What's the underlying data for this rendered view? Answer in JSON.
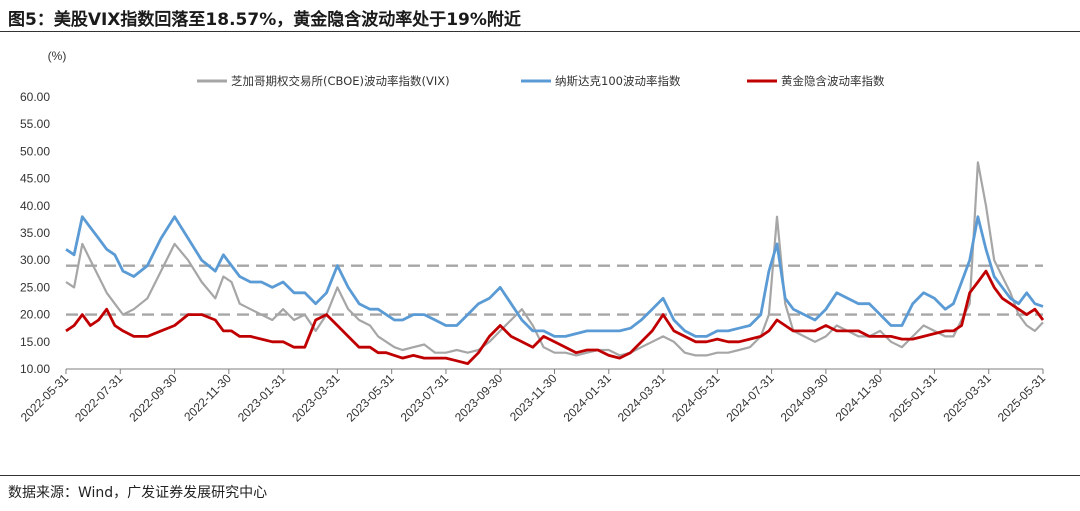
{
  "figure": {
    "title": "图5：美股VIX指数回落至18.57%，黄金隐含波动率处于19%附近",
    "source": "数据来源：Wind，广发证券发展研究中心"
  },
  "chart_data": {
    "type": "line",
    "unit_label": "(%)",
    "ylim": [
      10,
      60
    ],
    "yticks": [
      "10.00",
      "15.00",
      "20.00",
      "25.00",
      "30.00",
      "35.00",
      "40.00",
      "45.00",
      "50.00",
      "55.00",
      "60.00"
    ],
    "xlim": [
      0,
      36
    ],
    "xticks": [
      "2022-05-31",
      "2022-07-31",
      "2022-09-30",
      "2022-11-30",
      "2023-01-31",
      "2023-03-31",
      "2023-05-31",
      "2023-07-31",
      "2023-09-30",
      "2023-11-30",
      "2024-01-31",
      "2024-03-31",
      "2024-05-31",
      "2024-07-31",
      "2024-09-30",
      "2024-11-30",
      "2025-01-31",
      "2025-03-31",
      "2025-05-31"
    ],
    "reference_lines": [
      29,
      20
    ],
    "colors": {
      "vix": "#a6a6a6",
      "nasdaq": "#5b9bd5",
      "gold": "#c00000",
      "ref": "#a6a6a6"
    },
    "series": [
      {
        "name": "芝加哥期权交易所(CBOE)波动率指数(VIX)",
        "key": "vix",
        "x": [
          0,
          0.3,
          0.6,
          0.9,
          1.2,
          1.5,
          1.8,
          2.1,
          2.5,
          3,
          3.5,
          4,
          4.5,
          5,
          5.5,
          5.8,
          6.1,
          6.4,
          6.8,
          7.2,
          7.6,
          8,
          8.4,
          8.8,
          9.2,
          9.6,
          10,
          10.4,
          10.8,
          11.2,
          11.5,
          11.8,
          12.1,
          12.4,
          12.8,
          13.2,
          13.6,
          14,
          14.4,
          14.8,
          15.2,
          15.6,
          16,
          16.4,
          16.8,
          17.2,
          17.6,
          18,
          18.4,
          18.8,
          19.2,
          19.6,
          20,
          20.4,
          20.8,
          21.2,
          21.6,
          22,
          22.4,
          22.8,
          23.2,
          23.6,
          24,
          24.4,
          24.8,
          25.2,
          25.6,
          25.9,
          26.2,
          26.5,
          26.8,
          27.2,
          27.6,
          28,
          28.4,
          28.8,
          29.2,
          29.6,
          30,
          30.4,
          30.8,
          31.2,
          31.6,
          32,
          32.4,
          32.7,
          33,
          33.3,
          33.6,
          33.9,
          34.2,
          34.5,
          34.8,
          35.1,
          35.4,
          35.7,
          36
        ],
        "values": [
          26,
          25,
          33,
          30,
          27,
          24,
          22,
          20,
          21,
          23,
          28,
          33,
          30,
          26,
          23,
          27,
          26,
          22,
          21,
          20,
          19,
          21,
          19,
          20,
          17,
          20,
          25,
          21,
          19,
          18,
          16,
          15,
          14,
          13.5,
          14,
          14.5,
          13,
          13,
          13.5,
          13,
          13.5,
          15,
          17,
          19,
          21,
          18,
          14,
          13,
          13,
          12.5,
          13,
          13.5,
          13.5,
          12.5,
          13,
          14,
          15,
          16,
          15,
          13,
          12.5,
          12.5,
          13,
          13,
          13.5,
          14,
          16,
          20,
          38,
          22,
          17,
          16,
          15,
          16,
          18,
          17,
          16,
          16,
          17,
          15,
          14,
          16,
          18,
          17,
          16,
          16,
          19,
          22,
          48,
          40,
          30,
          27,
          24,
          20,
          18,
          17,
          18.57
        ]
      },
      {
        "name": "纳斯达克100波动率指数",
        "key": "nasdaq",
        "x": [
          0,
          0.3,
          0.6,
          0.9,
          1.2,
          1.5,
          1.8,
          2.1,
          2.5,
          3,
          3.5,
          4,
          4.5,
          5,
          5.5,
          5.8,
          6.1,
          6.4,
          6.8,
          7.2,
          7.6,
          8,
          8.4,
          8.8,
          9.2,
          9.6,
          10,
          10.4,
          10.8,
          11.2,
          11.5,
          11.8,
          12.1,
          12.4,
          12.8,
          13.2,
          13.6,
          14,
          14.4,
          14.8,
          15.2,
          15.6,
          16,
          16.4,
          16.8,
          17.2,
          17.6,
          18,
          18.4,
          18.8,
          19.2,
          19.6,
          20,
          20.4,
          20.8,
          21.2,
          21.6,
          22,
          22.4,
          22.8,
          23.2,
          23.6,
          24,
          24.4,
          24.8,
          25.2,
          25.6,
          25.9,
          26.2,
          26.5,
          26.8,
          27.2,
          27.6,
          28,
          28.4,
          28.8,
          29.2,
          29.6,
          30,
          30.4,
          30.8,
          31.2,
          31.6,
          32,
          32.4,
          32.7,
          33,
          33.3,
          33.6,
          33.9,
          34.2,
          34.5,
          34.8,
          35.1,
          35.4,
          35.7,
          36
        ],
        "values": [
          32,
          31,
          38,
          36,
          34,
          32,
          31,
          28,
          27,
          29,
          34,
          38,
          34,
          30,
          28,
          31,
          29,
          27,
          26,
          26,
          25,
          26,
          24,
          24,
          22,
          24,
          29,
          25,
          22,
          21,
          21,
          20,
          19,
          19,
          20,
          20,
          19,
          18,
          18,
          20,
          22,
          23,
          25,
          22,
          19,
          17,
          17,
          16,
          16,
          16.5,
          17,
          17,
          17,
          17,
          17.5,
          19,
          21,
          23,
          19,
          17,
          16,
          16,
          17,
          17,
          17.5,
          18,
          20,
          28,
          33,
          23,
          21,
          20,
          19,
          21,
          24,
          23,
          22,
          22,
          20,
          18,
          18,
          22,
          24,
          23,
          21,
          22,
          26,
          30,
          38,
          32,
          27,
          25,
          23,
          22,
          24,
          22,
          21.5
        ]
      },
      {
        "name": "黄金隐含波动率指数",
        "key": "gold",
        "x": [
          0,
          0.3,
          0.6,
          0.9,
          1.2,
          1.5,
          1.8,
          2.1,
          2.5,
          3,
          3.5,
          4,
          4.5,
          5,
          5.5,
          5.8,
          6.1,
          6.4,
          6.8,
          7.2,
          7.6,
          8,
          8.4,
          8.8,
          9.2,
          9.6,
          10,
          10.4,
          10.8,
          11.2,
          11.5,
          11.8,
          12.1,
          12.4,
          12.8,
          13.2,
          13.6,
          14,
          14.4,
          14.8,
          15.2,
          15.6,
          16,
          16.4,
          16.8,
          17.2,
          17.6,
          18,
          18.4,
          18.8,
          19.2,
          19.6,
          20,
          20.4,
          20.8,
          21.2,
          21.6,
          22,
          22.4,
          22.8,
          23.2,
          23.6,
          24,
          24.4,
          24.8,
          25.2,
          25.6,
          25.9,
          26.2,
          26.5,
          26.8,
          27.2,
          27.6,
          28,
          28.4,
          28.8,
          29.2,
          29.6,
          30,
          30.4,
          30.8,
          31.2,
          31.6,
          32,
          32.4,
          32.7,
          33,
          33.3,
          33.6,
          33.9,
          34.2,
          34.5,
          34.8,
          35.1,
          35.4,
          35.7,
          36
        ],
        "values": [
          17,
          18,
          20,
          18,
          19,
          21,
          18,
          17,
          16,
          16,
          17,
          18,
          20,
          20,
          19,
          17,
          17,
          16,
          16,
          15.5,
          15,
          15,
          14,
          14,
          19,
          20,
          18,
          16,
          14,
          14,
          13,
          13,
          12.5,
          12,
          12.5,
          12,
          12,
          12,
          11.5,
          11,
          13,
          16,
          18,
          16,
          15,
          14,
          16,
          15,
          14,
          13,
          13.5,
          13.5,
          12.5,
          12,
          13,
          15,
          17,
          20,
          17,
          16,
          15,
          15,
          15.5,
          15,
          15,
          15.5,
          16,
          17,
          19,
          18,
          17,
          17,
          17,
          18,
          17,
          17,
          17,
          16,
          16,
          16,
          15.5,
          15.5,
          16,
          16.5,
          17,
          17,
          18,
          24,
          26,
          28,
          25,
          23,
          22,
          21,
          20,
          21,
          19
        ]
      }
    ]
  }
}
